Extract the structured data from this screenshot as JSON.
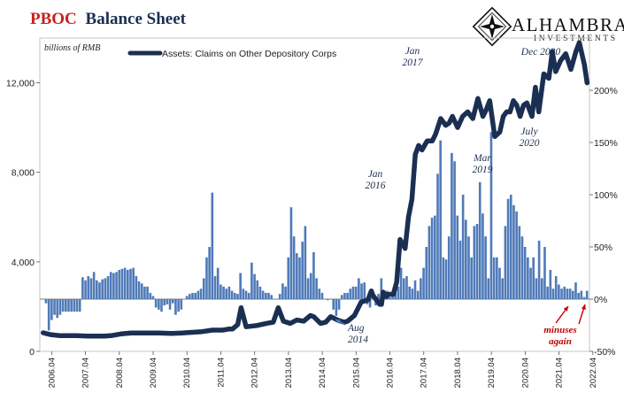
{
  "header": {
    "title_red": "PBOC",
    "title_blue": "Balance Sheet",
    "colors": {
      "red": "#c9211e",
      "navy": "#1a2f52",
      "bar": "#4f7ab8"
    }
  },
  "logo": {
    "name": "ALHAMBRA",
    "tagline": "INVESTMENTS",
    "icon": "diamond-star-icon"
  },
  "chart_data": {
    "type": "bar",
    "units_label": "billions of RMB",
    "legend": [
      {
        "name": "Assets: Claims on Other Depository Corps",
        "type": "line",
        "color": "#1a2f52"
      }
    ],
    "x_ticks": [
      "2006.04",
      "2007.04",
      "2008.04",
      "2009.04",
      "2010.04",
      "2011.04",
      "2012.04",
      "2013.04",
      "2014.04",
      "2015.04",
      "2016.04",
      "2017.04",
      "2018.04",
      "2019.04",
      "2020.04",
      "2021.04",
      "2022.04"
    ],
    "left_axis": {
      "ylim": [
        0,
        14000
      ],
      "ticks": [
        0,
        4000,
        8000,
        12000
      ],
      "tick_labels": [
        "0",
        "4,000",
        "8,000",
        "12,000"
      ]
    },
    "right_axis": {
      "ylim": [
        -50,
        250
      ],
      "ticks": [
        -50,
        0,
        50,
        100,
        150,
        200
      ],
      "tick_labels": [
        "-50%",
        "0%",
        "50%",
        "100%",
        "150%",
        "200%"
      ]
    },
    "series": [
      {
        "name": "Assets: Claims on Other Depository Corps",
        "axis": "left",
        "x": [
          2006.0,
          2006.2,
          2006.5,
          2007.0,
          2007.3,
          2007.5,
          2007.8,
          2008.0,
          2008.3,
          2008.6,
          2009.0,
          2009.4,
          2009.8,
          2010.1,
          2010.4,
          2010.7,
          2011.0,
          2011.3,
          2011.5,
          2011.6,
          2011.75,
          2011.85,
          2012.0,
          2012.3,
          2012.6,
          2012.8,
          2012.95,
          2013.1,
          2013.3,
          2013.5,
          2013.7,
          2013.9,
          2014.0,
          2014.2,
          2014.35,
          2014.5,
          2014.7,
          2014.9,
          2015.0,
          2015.2,
          2015.4,
          2015.6,
          2015.7,
          2015.75,
          2015.85,
          2015.95,
          2016.0,
          2016.05,
          2016.15,
          2016.2,
          2016.35,
          2016.45,
          2016.55,
          2016.7,
          2016.8,
          2016.9,
          2017.0,
          2017.1,
          2017.2,
          2017.35,
          2017.5,
          2017.6,
          2017.75,
          2017.9,
          2018.0,
          2018.1,
          2018.25,
          2018.4,
          2018.55,
          2018.7,
          2018.85,
          2019.0,
          2019.1,
          2019.2,
          2019.35,
          2019.5,
          2019.6,
          2019.7,
          2019.8,
          2019.9,
          2020.0,
          2020.1,
          2020.2,
          2020.3,
          2020.45,
          2020.55,
          2020.65,
          2020.8,
          2020.95,
          2021.05,
          2021.15,
          2021.3,
          2021.45,
          2021.6,
          2021.75,
          2021.85,
          2022.0,
          2022.08
        ],
        "y": [
          830,
          750,
          700,
          700,
          680,
          680,
          680,
          700,
          780,
          820,
          820,
          820,
          800,
          820,
          850,
          880,
          950,
          950,
          1000,
          1000,
          1200,
          1950,
          1100,
          1150,
          1250,
          1300,
          1950,
          1350,
          1250,
          1400,
          1350,
          1600,
          1550,
          1250,
          1300,
          1550,
          1400,
          1300,
          1350,
          1600,
          2200,
          2300,
          2700,
          2500,
          2300,
          2100,
          2100,
          2650,
          2450,
          2550,
          2550,
          3100,
          5000,
          4600,
          6000,
          6800,
          8800,
          9200,
          9000,
          9400,
          9400,
          9700,
          10400,
          10100,
          10200,
          10500,
          10000,
          10500,
          10700,
          10400,
          11300,
          10500,
          10800,
          11200,
          9600,
          9800,
          10500,
          10700,
          10700,
          11200,
          11000,
          10500,
          11000,
          11100,
          10500,
          11800,
          10700,
          12400,
          12200,
          13400,
          12500,
          13000,
          13300,
          12600,
          13400,
          13800,
          12800,
          12000
        ]
      },
      {
        "name": "",
        "type": "bar",
        "axis": "right",
        "x_start": 2006.0,
        "x_step": 0.0833,
        "values": [
          0,
          -4,
          -30,
          -20,
          -15,
          -18,
          -15,
          -12,
          -12,
          -12,
          -12,
          -12,
          -12,
          -12,
          21,
          18,
          22,
          20,
          26,
          18,
          16,
          19,
          20,
          22,
          26,
          25,
          26,
          28,
          29,
          30,
          28,
          29,
          30,
          22,
          17,
          15,
          12,
          12,
          6,
          3,
          -8,
          -10,
          -12,
          -6,
          -5,
          -10,
          -4,
          -15,
          -12,
          -10,
          0,
          3,
          5,
          6,
          6,
          8,
          10,
          20,
          40,
          50,
          102,
          22,
          30,
          14,
          12,
          10,
          12,
          8,
          6,
          5,
          25,
          10,
          8,
          6,
          35,
          24,
          18,
          12,
          8,
          6,
          6,
          4,
          0,
          0,
          5,
          15,
          12,
          40,
          88,
          60,
          44,
          40,
          55,
          70,
          20,
          25,
          45,
          20,
          10,
          6,
          0,
          -1,
          0,
          -10,
          -16,
          -10,
          4,
          6,
          6,
          10,
          12,
          12,
          20,
          15,
          16,
          -5,
          -8,
          2,
          -6,
          5,
          20,
          5,
          8,
          2,
          4,
          6,
          12,
          30,
          20,
          22,
          12,
          10,
          18,
          8,
          20,
          30,
          50,
          70,
          78,
          80,
          120,
          152,
          40,
          38,
          60,
          140,
          132,
          80,
          56,
          100,
          76,
          60,
          40,
          70,
          72,
          112,
          82,
          60,
          20,
          160,
          40,
          40,
          30,
          20,
          70,
          96,
          100,
          90,
          84,
          70,
          60,
          50,
          40,
          30,
          40,
          20,
          56,
          20,
          50,
          12,
          28,
          10,
          22,
          14,
          10,
          12,
          10,
          10,
          8,
          16,
          6,
          8,
          2,
          8,
          -2,
          2,
          6,
          8,
          -2,
          10,
          4,
          -6,
          2,
          6,
          10,
          8,
          10,
          12,
          6,
          15,
          10,
          18,
          8,
          10,
          6,
          14,
          12,
          6,
          10,
          16,
          12,
          4,
          20,
          16,
          8,
          10,
          2,
          6,
          8,
          14,
          6,
          8,
          16,
          10,
          14,
          8,
          10,
          14,
          6,
          4,
          6,
          2,
          -3,
          2,
          10,
          2,
          -2,
          6,
          8,
          -2,
          -4
        ]
      }
    ],
    "annotations": [
      {
        "lines": [
          "Aug",
          "2014"
        ],
        "color": "#1b2f4e",
        "arrow": true
      },
      {
        "lines": [
          "Jan",
          "2016"
        ],
        "color": "#1b2f4e"
      },
      {
        "lines": [
          "Jan",
          "2017"
        ],
        "color": "#1b2f4e"
      },
      {
        "lines": [
          "Mar",
          "2019"
        ],
        "color": "#1b2f4e"
      },
      {
        "lines": [
          "July",
          "2020"
        ],
        "color": "#1b2f4e"
      },
      {
        "lines": [
          "Dec 2020"
        ],
        "color": "#1b2f4e"
      },
      {
        "lines": [
          "minuses",
          "again"
        ],
        "color": "#c00000",
        "arrow": true
      }
    ]
  }
}
